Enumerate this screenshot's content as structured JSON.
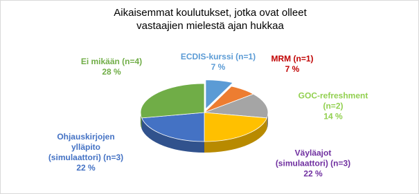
{
  "chart_data": {
    "type": "pie3d",
    "title": "Aikaisemmat koulutukset, jotka ovat olleet vastaajien mielestä ajan hukkaa",
    "categories": [
      "ECDIS-kurssi (n=1)",
      "MRM (n=1)",
      "GOC-refreshment (n=2)",
      "Väyläajot (simulaattori) (n=3)",
      "Ohjauskirjojen ylläpito (simulaattori) (n=3)",
      "Ei mikään (n=4)"
    ],
    "values": [
      7,
      7,
      14,
      22,
      22,
      28
    ],
    "value_labels": [
      "7 %",
      "7 %",
      "14 %",
      "22 %",
      "22 %",
      "28 %"
    ],
    "colors": [
      "#5b9bd5",
      "#ed7d31",
      "#a5a5a5",
      "#ffc000",
      "#4472c4",
      "#70ad47"
    ],
    "label_colors": [
      "#5b9bd5",
      "#c00000",
      "#92d050",
      "#7030a0",
      "#4472c4",
      "#70ad47"
    ],
    "exploded": [
      true,
      false,
      false,
      false,
      false,
      false
    ]
  }
}
